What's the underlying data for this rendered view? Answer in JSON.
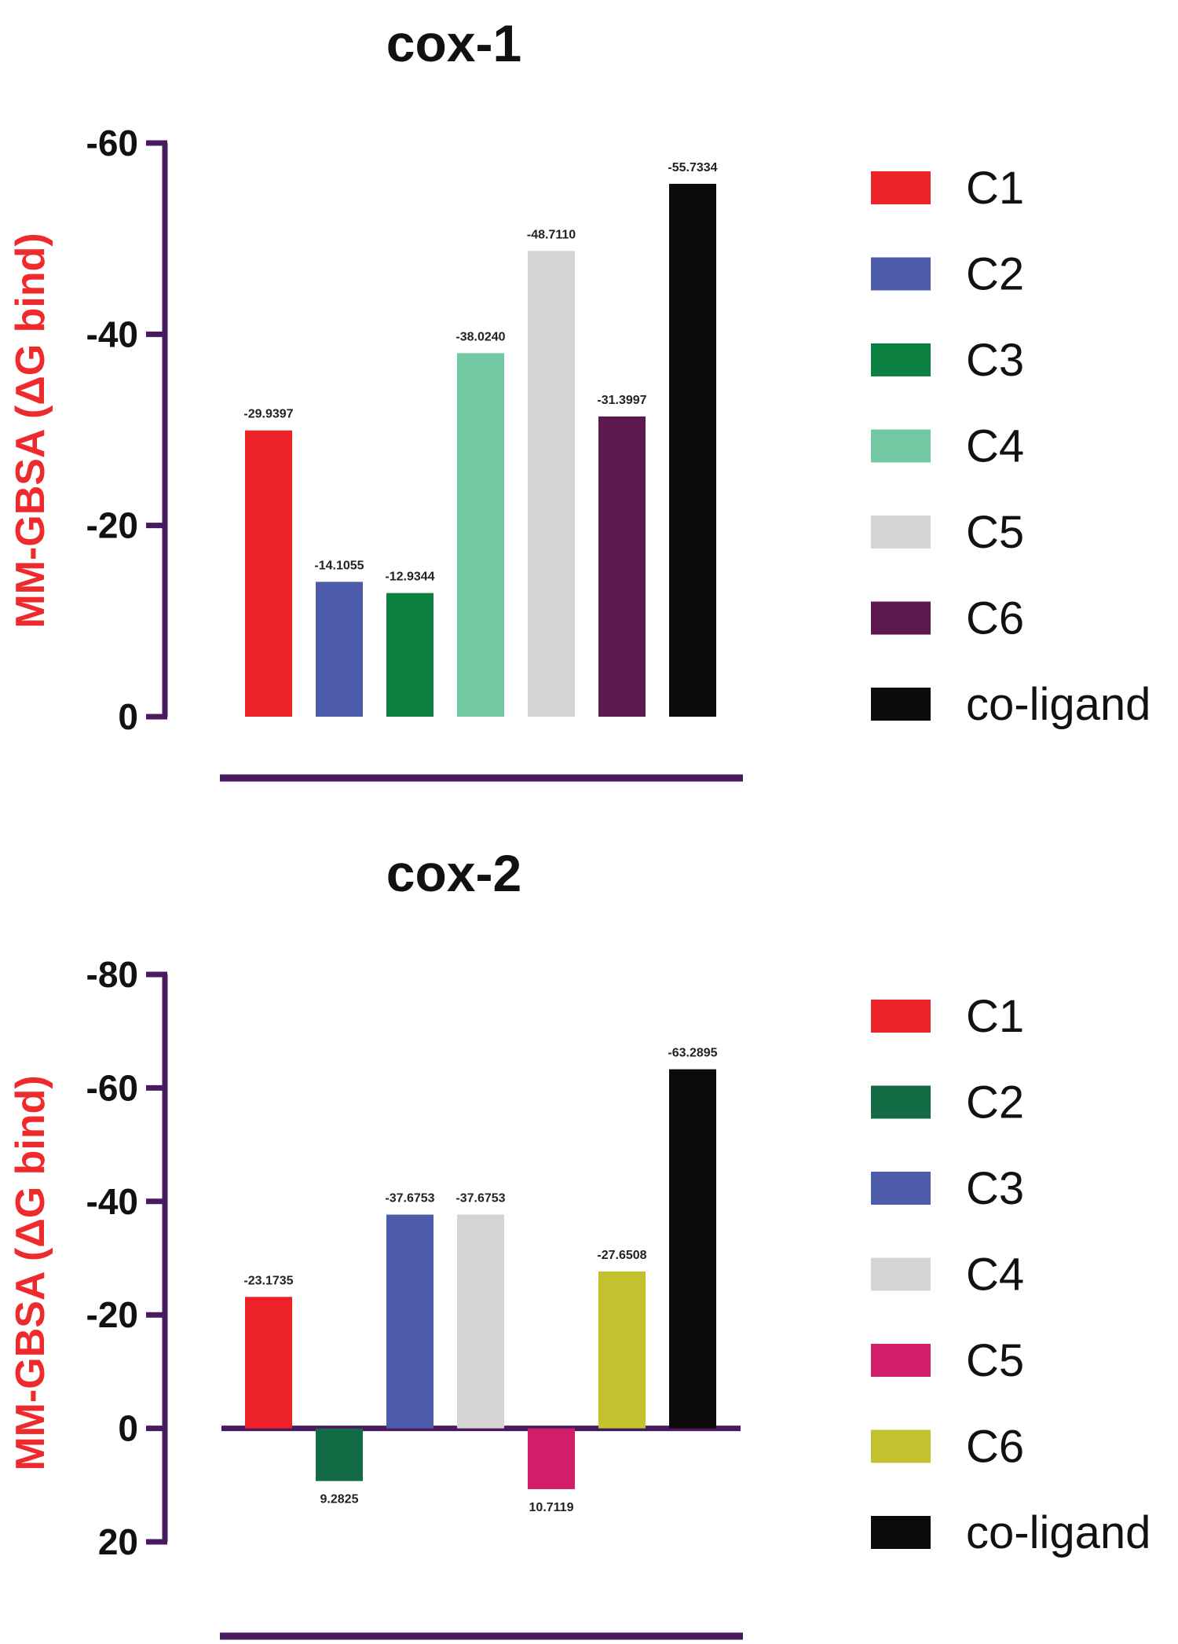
{
  "axis_color": "#4a1a5e",
  "chart_data": [
    {
      "type": "bar",
      "title": "cox-1",
      "ylabel": "MM-GBSA (ΔG bind)",
      "ylabel_color": "#ee2a2d",
      "ylim": [
        -60,
        0
      ],
      "yticks": [
        -60,
        -40,
        -20,
        0
      ],
      "ytick_labels": [
        "-60",
        "-40",
        "-20",
        "0"
      ],
      "categories": [
        "C1",
        "C2",
        "C3",
        "C4",
        "C5",
        "C6",
        "co-ligand"
      ],
      "values": [
        -29.9397,
        -14.1055,
        -12.9344,
        -38.024,
        -48.711,
        -31.3997,
        -55.7334
      ],
      "value_labels": [
        "-29.9397",
        "-14.1055",
        "-12.9344",
        "-38.0240",
        "-48.7110",
        "-31.3997",
        "-55.7334"
      ],
      "colors": [
        "#ec2227",
        "#4c5baa",
        "#0c8040",
        "#72c8a2",
        "#d4d4d4",
        "#5e1850",
        "#0b0b0b"
      ],
      "legend": [
        "C1",
        "C2",
        "C3",
        "C4",
        "C5",
        "C6",
        "co-ligand"
      ],
      "legend_position": "right",
      "grid": false
    },
    {
      "type": "bar",
      "title": "cox-2",
      "ylabel": "MM-GBSA (ΔG bind)",
      "ylabel_color": "#ee2a2d",
      "ylim": [
        -80,
        20
      ],
      "yticks": [
        -80,
        -60,
        -40,
        -20,
        0,
        20
      ],
      "ytick_labels": [
        "-80",
        "-60",
        "-40",
        "-20",
        "0",
        "20"
      ],
      "categories": [
        "C1",
        "C2",
        "C3",
        "C4",
        "C5",
        "C6",
        "co-ligand"
      ],
      "values": [
        -23.1735,
        9.2825,
        -37.6753,
        -37.6753,
        10.7119,
        -27.6508,
        -63.2895
      ],
      "value_labels": [
        "-23.1735",
        "9.2825",
        "-37.6753",
        "-37.6753",
        "10.7119",
        "-27.6508",
        "-63.2895"
      ],
      "colors": [
        "#ec2227",
        "#136b45",
        "#4c5baa",
        "#d4d4d4",
        "#d21e6a",
        "#c2c22e",
        "#0b0b0b"
      ],
      "legend": [
        "C1",
        "C2",
        "C3",
        "C4",
        "C5",
        "C6",
        "co-ligand"
      ],
      "legend_position": "right",
      "grid": false
    }
  ]
}
